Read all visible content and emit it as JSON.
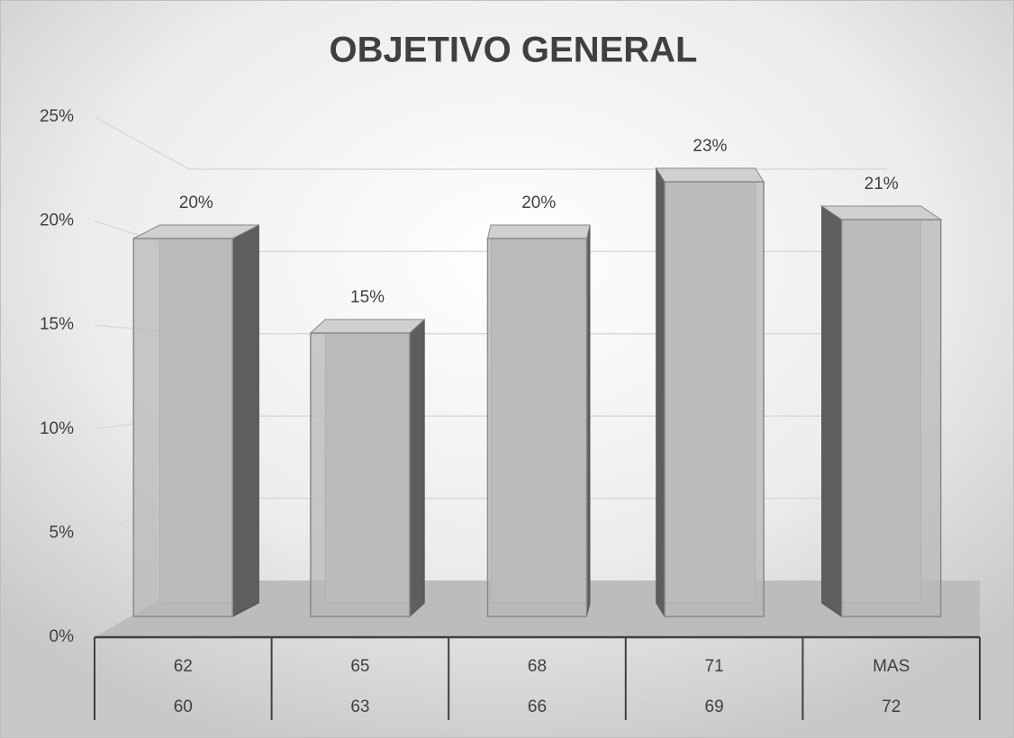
{
  "chart_data": {
    "type": "bar3d",
    "title": "OBJETIVO GENERAL",
    "categories": [
      "62",
      "65",
      "68",
      "71",
      "MAS"
    ],
    "categories_lower": [
      "60",
      "63",
      "66",
      "69",
      "72"
    ],
    "values": [
      20,
      15,
      20,
      23,
      21
    ],
    "value_labels": [
      "20%",
      "15%",
      "20%",
      "23%",
      "21%"
    ],
    "color": "#b8b8b8",
    "ylim": [
      0,
      25
    ],
    "yticks": [
      {
        "value": 0,
        "label": "0%"
      },
      {
        "value": 5,
        "label": "5%"
      },
      {
        "value": 10,
        "label": "10%"
      },
      {
        "value": 15,
        "label": "15%"
      },
      {
        "value": 20,
        "label": "20%"
      },
      {
        "value": 25,
        "label": "25%"
      }
    ],
    "grid": true
  }
}
